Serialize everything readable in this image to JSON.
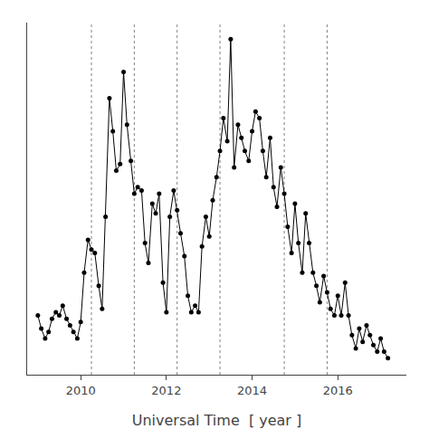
{
  "chart_data": {
    "type": "line",
    "xlabel": "Universal Time  [ year ]",
    "color": "#000000",
    "marker": "circle",
    "line_style": "solid",
    "grid": false,
    "tick_labels": "x",
    "xlim": [
      2008.75,
      2017.6
    ],
    "ylim": [
      -0.02,
      1.05
    ],
    "xticks": [
      2010,
      2012,
      2014,
      2016
    ],
    "yticks": [],
    "vlines": [
      2010.25,
      2011.25,
      2012.25,
      2013.25,
      2014.75,
      2015.75
    ],
    "x": [
      2009.0,
      2009.08,
      2009.17,
      2009.25,
      2009.33,
      2009.42,
      2009.5,
      2009.58,
      2009.67,
      2009.75,
      2009.83,
      2009.92,
      2010.0,
      2010.08,
      2010.17,
      2010.25,
      2010.33,
      2010.42,
      2010.5,
      2010.58,
      2010.67,
      2010.75,
      2010.83,
      2010.92,
      2011.0,
      2011.08,
      2011.17,
      2011.25,
      2011.33,
      2011.42,
      2011.5,
      2011.58,
      2011.67,
      2011.75,
      2011.83,
      2011.92,
      2012.0,
      2012.08,
      2012.17,
      2012.25,
      2012.33,
      2012.42,
      2012.5,
      2012.58,
      2012.67,
      2012.75,
      2012.83,
      2012.92,
      2013.0,
      2013.08,
      2013.17,
      2013.25,
      2013.33,
      2013.42,
      2013.5,
      2013.58,
      2013.67,
      2013.75,
      2013.83,
      2013.92,
      2014.0,
      2014.08,
      2014.17,
      2014.25,
      2014.33,
      2014.42,
      2014.5,
      2014.58,
      2014.67,
      2014.75,
      2014.83,
      2014.92,
      2015.0,
      2015.08,
      2015.17,
      2015.25,
      2015.33,
      2015.42,
      2015.5,
      2015.58,
      2015.67,
      2015.75,
      2015.83,
      2015.92,
      2016.0,
      2016.08,
      2016.17,
      2016.25,
      2016.33,
      2016.42,
      2016.5,
      2016.58,
      2016.67,
      2016.75,
      2016.83,
      2016.92,
      2017.0,
      2017.08,
      2017.17
    ],
    "values": [
      0.16,
      0.12,
      0.09,
      0.11,
      0.15,
      0.17,
      0.16,
      0.19,
      0.15,
      0.13,
      0.11,
      0.09,
      0.14,
      0.29,
      0.39,
      0.36,
      0.35,
      0.25,
      0.18,
      0.46,
      0.82,
      0.72,
      0.6,
      0.62,
      0.9,
      0.74,
      0.63,
      0.53,
      0.55,
      0.54,
      0.38,
      0.32,
      0.5,
      0.47,
      0.53,
      0.26,
      0.17,
      0.46,
      0.54,
      0.48,
      0.41,
      0.34,
      0.22,
      0.17,
      0.19,
      0.17,
      0.37,
      0.46,
      0.4,
      0.51,
      0.58,
      0.66,
      0.76,
      0.69,
      1.0,
      0.61,
      0.74,
      0.7,
      0.66,
      0.63,
      0.72,
      0.78,
      0.76,
      0.66,
      0.58,
      0.7,
      0.55,
      0.49,
      0.61,
      0.53,
      0.43,
      0.35,
      0.5,
      0.38,
      0.29,
      0.47,
      0.38,
      0.29,
      0.25,
      0.2,
      0.28,
      0.23,
      0.18,
      0.16,
      0.22,
      0.16,
      0.26,
      0.16,
      0.1,
      0.06,
      0.12,
      0.08,
      0.13,
      0.1,
      0.07,
      0.05,
      0.09,
      0.05,
      0.03
    ]
  }
}
